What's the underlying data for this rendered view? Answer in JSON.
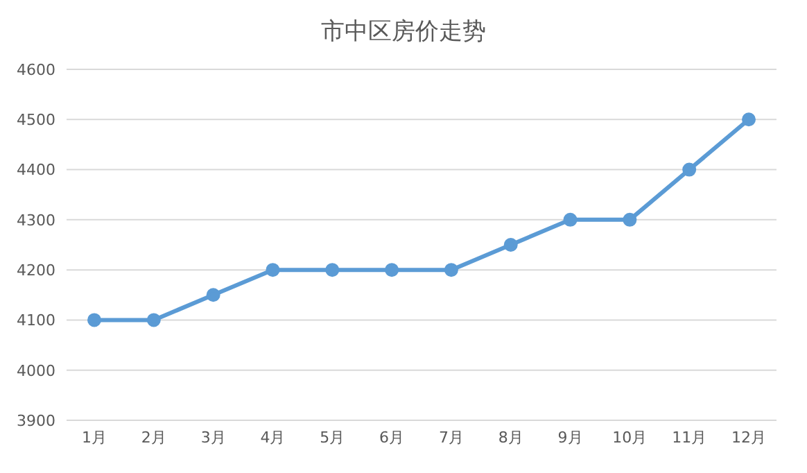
{
  "chart_data": {
    "type": "line",
    "title": "市中区房价走势",
    "categories": [
      "1月",
      "2月",
      "3月",
      "4月",
      "5月",
      "6月",
      "7月",
      "8月",
      "9月",
      "10月",
      "11月",
      "12月"
    ],
    "series": [
      {
        "color": "#5b9bd5",
        "values": [
          4100,
          4100,
          4150,
          4200,
          4200,
          4200,
          4200,
          4250,
          4300,
          4300,
          4400,
          4500
        ]
      }
    ],
    "ylim": [
      3900,
      4600
    ],
    "yticks": [
      3900,
      4000,
      4100,
      4200,
      4300,
      4400,
      4500,
      4600
    ],
    "grid": "y",
    "marker": "circle",
    "line_style": "solid"
  }
}
